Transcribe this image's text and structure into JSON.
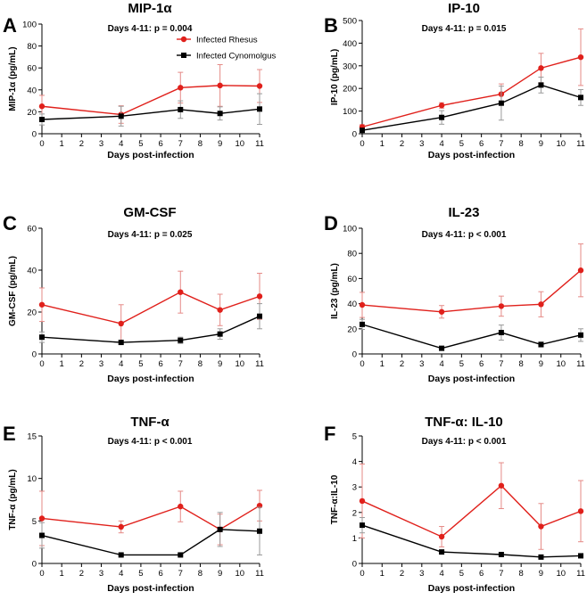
{
  "colors": {
    "rhesus": "#e0201b",
    "cyno": "#000000",
    "error_rhesus": "#e58a86",
    "error_cyno": "#9a9a9a"
  },
  "legend": {
    "rhesus": "Infected Rhesus",
    "cyno": "Infected Cynomolgus"
  },
  "chart_data": [
    {
      "type": "line",
      "panel": "A",
      "title": "MIP-1α",
      "subtitle": "Days 4-11: p = 0.004",
      "xlabel": "Days post-infection",
      "ylabel": "MIP-1α (pg/mL)",
      "xlim": [
        0,
        11
      ],
      "xticks": [
        0,
        1,
        2,
        3,
        4,
        5,
        6,
        7,
        8,
        9,
        10,
        11
      ],
      "ylim": [
        0,
        100
      ],
      "yticks": [
        0,
        20,
        40,
        60,
        80,
        100
      ],
      "x": [
        0,
        4,
        7,
        9,
        11
      ],
      "series": [
        {
          "name": "Infected Rhesus",
          "values": [
            25,
            17.5,
            42,
            44,
            43.5
          ],
          "errors": [
            10,
            8,
            14,
            19,
            15
          ]
        },
        {
          "name": "Infected Cynomolgus",
          "values": [
            13,
            16,
            22,
            18.5,
            22.5
          ],
          "errors": [
            5,
            9,
            8,
            6,
            14
          ]
        }
      ]
    },
    {
      "type": "line",
      "panel": "B",
      "title": "IP-10",
      "subtitle": "Days 4-11: p = 0.015",
      "xlabel": "Days post-infection",
      "ylabel": "IP-10 (pg/mL)",
      "xlim": [
        0,
        11
      ],
      "xticks": [
        0,
        1,
        2,
        3,
        4,
        5,
        6,
        7,
        8,
        9,
        10,
        11
      ],
      "ylim": [
        0,
        500
      ],
      "yticks": [
        0,
        100,
        200,
        300,
        400,
        500
      ],
      "x": [
        0,
        4,
        7,
        9,
        11
      ],
      "series": [
        {
          "name": "Infected Rhesus",
          "values": [
            30,
            125,
            175,
            290,
            338
          ],
          "errors": [
            10,
            12,
            45,
            65,
            125
          ]
        },
        {
          "name": "Infected Cynomolgus",
          "values": [
            15,
            72,
            135,
            215,
            160
          ],
          "errors": [
            8,
            30,
            75,
            35,
            35
          ]
        }
      ]
    },
    {
      "type": "line",
      "panel": "C",
      "title": "GM-CSF",
      "subtitle": "Days 4-11: p = 0.025",
      "xlabel": "Days post-infection",
      "ylabel": "GM-CSF (pg/mL)",
      "xlim": [
        0,
        11
      ],
      "xticks": [
        0,
        1,
        2,
        3,
        4,
        5,
        6,
        7,
        8,
        9,
        10,
        11
      ],
      "ylim": [
        0,
        60
      ],
      "yticks": [
        0,
        20,
        40,
        60
      ],
      "x": [
        0,
        4,
        7,
        9,
        11
      ],
      "series": [
        {
          "name": "Infected Rhesus",
          "values": [
            23.5,
            14.5,
            29.5,
            21,
            27.5
          ],
          "errors": [
            8,
            9,
            10,
            7.5,
            11
          ]
        },
        {
          "name": "Infected Cynomolgus",
          "values": [
            8,
            5.5,
            6.5,
            9.5,
            18
          ],
          "errors": [
            2.5,
            0.8,
            1.5,
            2.5,
            6
          ]
        }
      ]
    },
    {
      "type": "line",
      "panel": "D",
      "title": "IL-23",
      "subtitle": "Days 4-11: p < 0.001",
      "xlabel": "Days post-infection",
      "ylabel": "IL-23 (pg/mL)",
      "xlim": [
        0,
        11
      ],
      "xticks": [
        0,
        1,
        2,
        3,
        4,
        5,
        6,
        7,
        8,
        9,
        10,
        11
      ],
      "ylim": [
        0,
        100
      ],
      "yticks": [
        0,
        20,
        40,
        60,
        80,
        100
      ],
      "x": [
        0,
        4,
        7,
        9,
        11
      ],
      "series": [
        {
          "name": "Infected Rhesus",
          "values": [
            39,
            33.5,
            38,
            39.5,
            66.5
          ],
          "errors": [
            10,
            5,
            8,
            10,
            21
          ]
        },
        {
          "name": "Infected Cynomolgus",
          "values": [
            23.5,
            4.5,
            17,
            7.5,
            15
          ],
          "errors": [
            4,
            1.5,
            6,
            2,
            5
          ]
        }
      ]
    },
    {
      "type": "line",
      "panel": "E",
      "title": "TNF-α",
      "subtitle": "Days 4-11: p < 0.001",
      "xlabel": "Days post-infection",
      "ylabel": "TNF-α (pg/mL)",
      "xlim": [
        0,
        11
      ],
      "xticks": [
        0,
        1,
        2,
        3,
        4,
        5,
        6,
        7,
        8,
        9,
        10,
        11
      ],
      "ylim": [
        0,
        15
      ],
      "yticks": [
        0,
        5,
        10,
        15
      ],
      "x": [
        0,
        4,
        7,
        9,
        11
      ],
      "series": [
        {
          "name": "Infected Rhesus",
          "values": [
            5.3,
            4.3,
            6.7,
            4.0,
            6.8
          ],
          "errors": [
            3.2,
            0.7,
            1.8,
            1.8,
            1.8
          ]
        },
        {
          "name": "Infected Cynomolgus",
          "values": [
            3.3,
            1.0,
            1.0,
            4.0,
            3.8
          ],
          "errors": [
            1.5,
            0.1,
            0.1,
            2.0,
            2.8
          ]
        }
      ]
    },
    {
      "type": "line",
      "panel": "F",
      "title": "TNF-α: IL-10",
      "subtitle": "Days 4-11: p < 0.001",
      "xlabel": "Days post-infection",
      "ylabel": "TNF-α:IL-10",
      "xlim": [
        0,
        11
      ],
      "xticks": [
        0,
        1,
        2,
        3,
        4,
        5,
        6,
        7,
        8,
        9,
        10,
        11
      ],
      "ylim": [
        0,
        5
      ],
      "yticks": [
        0,
        1,
        2,
        3,
        4,
        5
      ],
      "x": [
        0,
        4,
        7,
        9,
        11
      ],
      "series": [
        {
          "name": "Infected Rhesus",
          "values": [
            2.45,
            1.05,
            3.05,
            1.45,
            2.05
          ],
          "errors": [
            1.45,
            0.4,
            0.9,
            0.9,
            1.2
          ]
        },
        {
          "name": "Infected Cynomolgus",
          "values": [
            1.5,
            0.45,
            0.35,
            0.25,
            0.3
          ],
          "errors": [
            0.3,
            0.05,
            0.06,
            0.04,
            0.08
          ]
        }
      ]
    }
  ]
}
